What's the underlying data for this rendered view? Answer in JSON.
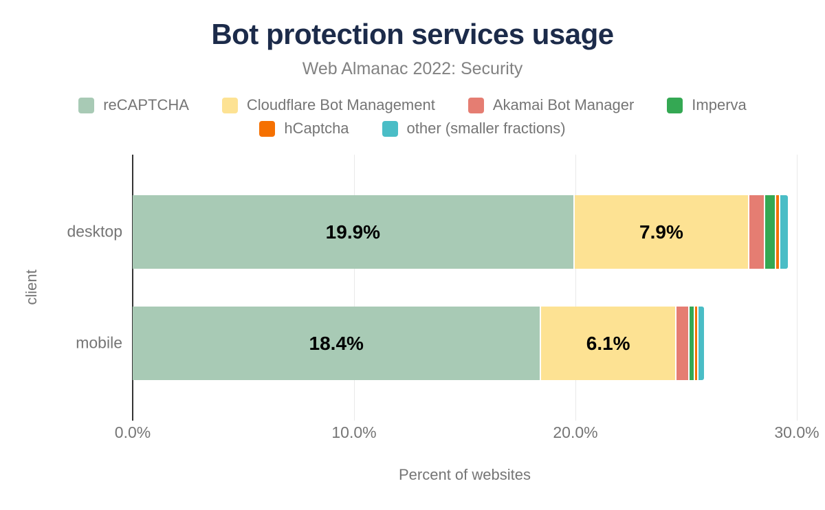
{
  "chart_data": {
    "type": "bar",
    "orientation": "horizontal",
    "stacked": true,
    "title": "Bot protection services usage",
    "subtitle": "Web Almanac 2022: Security",
    "categories": [
      "desktop",
      "mobile"
    ],
    "series": [
      {
        "name": "reCAPTCHA",
        "color": "#a8cab5",
        "values": [
          19.9,
          18.4
        ],
        "show_labels": true
      },
      {
        "name": "Cloudflare Bot Management",
        "color": "#fde293",
        "values": [
          7.9,
          6.1
        ],
        "show_labels": true
      },
      {
        "name": "Akamai Bot Manager",
        "color": "#e57d72",
        "values": [
          0.7,
          0.6
        ],
        "show_labels": false
      },
      {
        "name": "Imperva",
        "color": "#34a853",
        "values": [
          0.5,
          0.25
        ],
        "show_labels": false
      },
      {
        "name": "hCaptcha",
        "color": "#f57000",
        "values": [
          0.2,
          0.15
        ],
        "show_labels": false
      },
      {
        "name": "other (smaller fractions)",
        "color": "#4abdc6",
        "values": [
          0.4,
          0.3
        ],
        "show_labels": false
      }
    ],
    "data_labels": {
      "desktop": [
        "19.9%",
        "7.9%"
      ],
      "mobile": [
        "18.4%",
        "6.1%"
      ]
    },
    "xlabel": "Percent of websites",
    "ylabel": "client",
    "xlim": [
      0,
      30
    ],
    "x_ticks": [
      {
        "label": "0.0%",
        "value": 0
      },
      {
        "label": "10.0%",
        "value": 10
      },
      {
        "label": "20.0%",
        "value": 20
      },
      {
        "label": "30.0%",
        "value": 30
      }
    ],
    "legend_position": "top",
    "legend_rows": [
      4,
      2
    ],
    "grid": "vertical"
  },
  "style": {
    "title_color": "#1c2b4a",
    "text_color": "#757575",
    "subtitle_color": "#828282",
    "grid_color": "#e9e9e9",
    "axis_color": "#333333",
    "data_label_color": "#000000"
  }
}
